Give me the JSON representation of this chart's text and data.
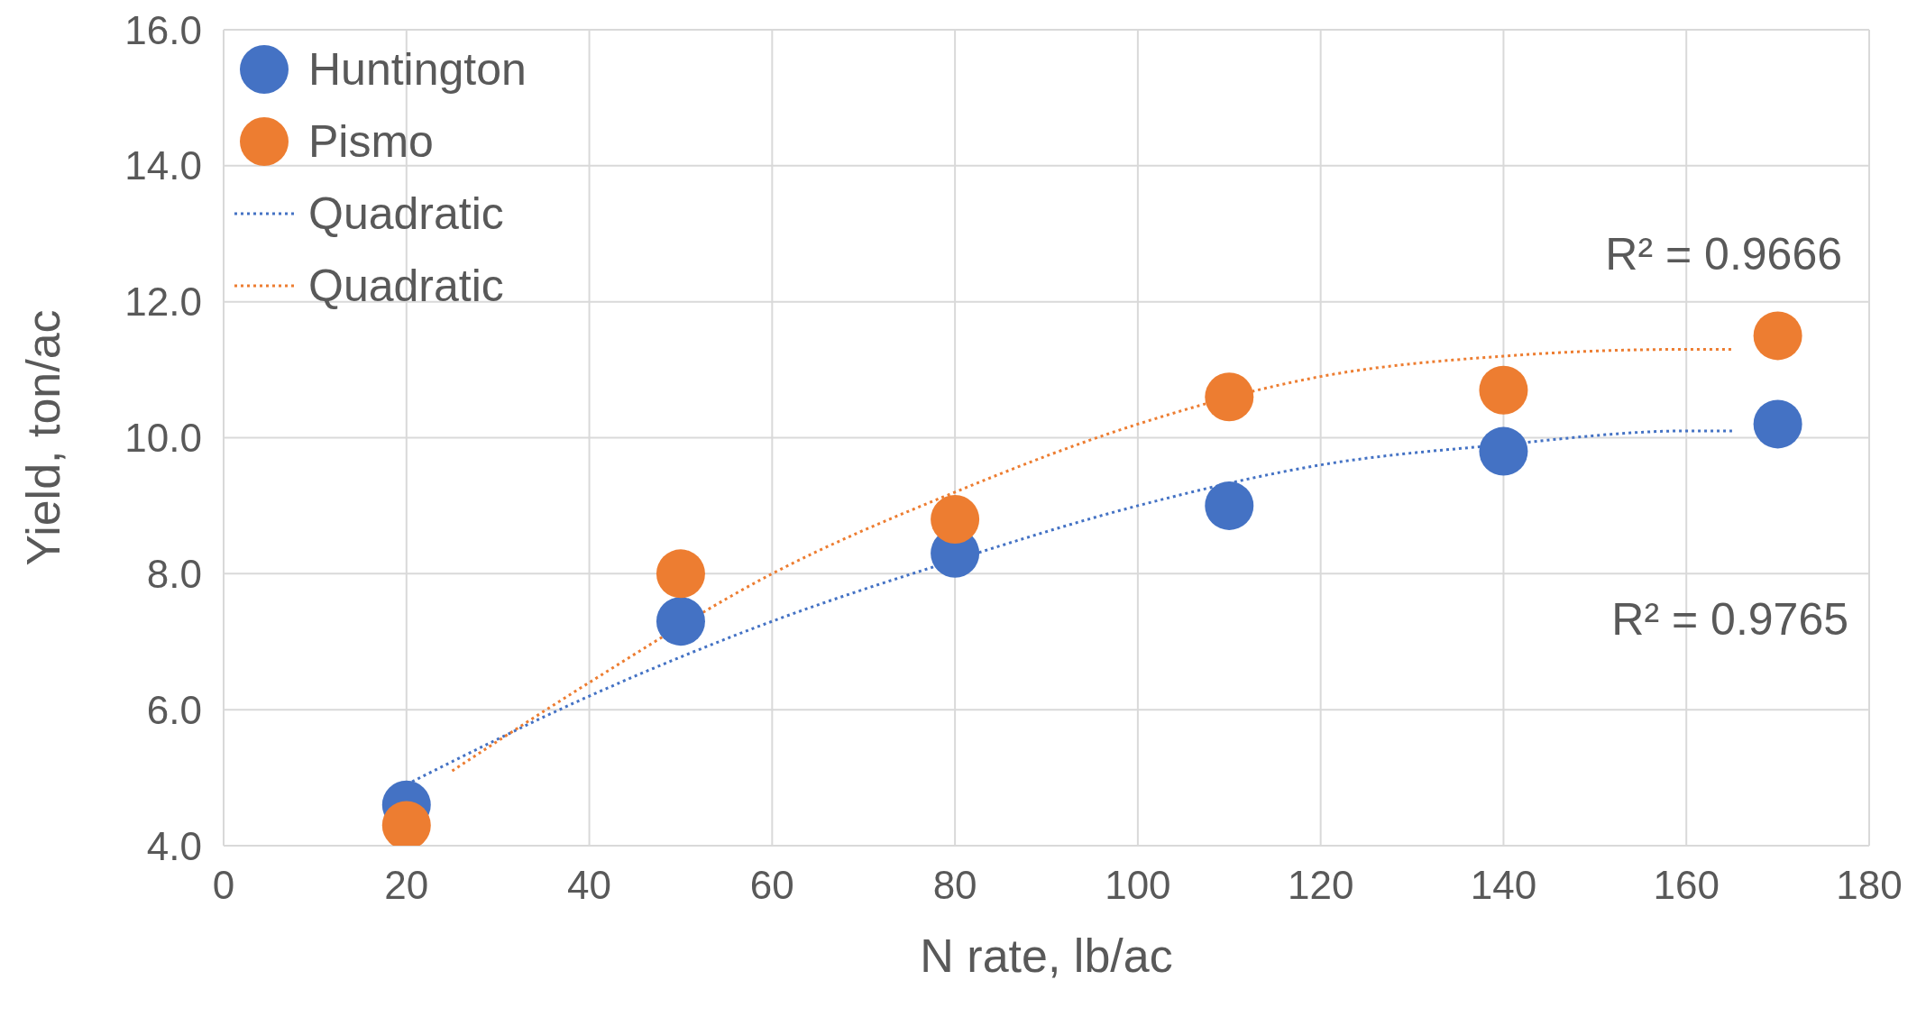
{
  "chart_data": {
    "type": "scatter",
    "xlabel": "N rate, lb/ac",
    "ylabel": "Yield, ton/ac",
    "xlim": [
      0,
      180
    ],
    "xticks": [
      0,
      20,
      40,
      60,
      80,
      100,
      120,
      140,
      160,
      180
    ],
    "ylim": [
      4,
      16
    ],
    "yticks": [
      {
        "value": 4,
        "label": "4.0"
      },
      {
        "value": 6,
        "label": "6.0"
      },
      {
        "value": 8,
        "label": "8.0"
      },
      {
        "value": 10,
        "label": "10.0"
      },
      {
        "value": 12,
        "label": "12.0"
      },
      {
        "value": 14,
        "label": "14.0"
      },
      {
        "value": 16,
        "label": "16.0"
      }
    ],
    "grid": true,
    "legend": "top left",
    "marker": "circle",
    "series": [
      {
        "name": "Huntington",
        "color": "#4472c4",
        "x": [
          20,
          50,
          80,
          110,
          140,
          170
        ],
        "values": [
          4.6,
          7.3,
          8.3,
          9.0,
          9.8,
          10.2
        ]
      },
      {
        "name": "Pismo",
        "color": "#ed7d31",
        "x": [
          20,
          50,
          80,
          110,
          140,
          170
        ],
        "values": [
          4.3,
          8.0,
          8.8,
          10.6,
          10.7,
          11.5
        ]
      },
      {
        "name": "Quadratic",
        "type": "line",
        "line_style": "dotted",
        "marker": "none",
        "color": "#4472c4",
        "x": [
          20,
          40,
          60,
          80,
          100,
          120,
          140,
          160,
          165
        ],
        "values": [
          4.9,
          6.2,
          7.3,
          8.2,
          9.0,
          9.6,
          9.9,
          10.1,
          10.1
        ]
      },
      {
        "name": "Quadratic",
        "type": "line",
        "line_style": "dotted",
        "marker": "none",
        "color": "#ed7d31",
        "x": [
          25,
          40,
          60,
          80,
          100,
          120,
          140,
          160,
          165
        ],
        "values": [
          5.1,
          6.4,
          8.0,
          9.2,
          10.2,
          10.9,
          11.2,
          11.3,
          11.3
        ]
      }
    ],
    "annotations": [
      "R² = 0.9666",
      "R² = 0.9765"
    ]
  }
}
